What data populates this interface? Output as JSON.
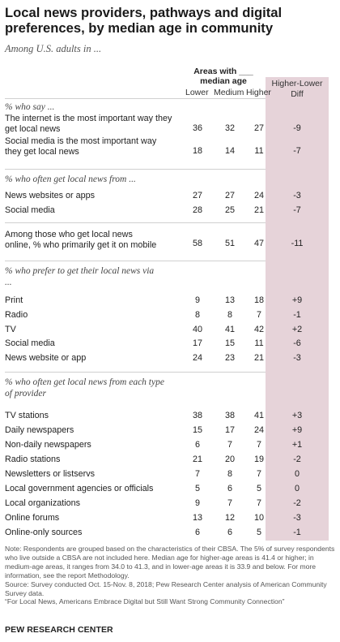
{
  "title": "Local news providers, pathways and digital preferences, by median age in community",
  "subtitle": "Among U.S. adults in ...",
  "header": {
    "group": "Areas with ___ median age",
    "lower": "Lower",
    "medium": "Medium",
    "higher": "Higher",
    "diff": "Higher-Lower Diff"
  },
  "colors": {
    "diff_column": "#e6d3d9",
    "rule": "#d0d0d0"
  },
  "sections": [
    {
      "heading": "% who say ...",
      "rows": [
        {
          "label": "The internet is the most important way they get local news",
          "lower": "36",
          "medium": "32",
          "higher": "27",
          "diff": "-9"
        },
        {
          "label": "Social media is the most important way they get local news",
          "lower": "18",
          "medium": "14",
          "higher": "11",
          "diff": "-7"
        }
      ]
    },
    {
      "heading": "% who often get local news from ...",
      "rows": [
        {
          "label": "News websites or apps",
          "lower": "27",
          "medium": "27",
          "higher": "24",
          "diff": "-3"
        },
        {
          "label": "Social media",
          "lower": "28",
          "medium": "25",
          "higher": "21",
          "diff": "-7"
        }
      ]
    },
    {
      "heading": "",
      "rows": [
        {
          "label": "Among those who get local news online, % who primarily get it on mobile",
          "lower": "58",
          "medium": "51",
          "higher": "47",
          "diff": "-11"
        }
      ]
    },
    {
      "heading": "% who prefer to get their local news via ...",
      "rows": [
        {
          "label": "Print",
          "lower": "9",
          "medium": "13",
          "higher": "18",
          "diff": "+9"
        },
        {
          "label": "Radio",
          "lower": "8",
          "medium": "8",
          "higher": "7",
          "diff": "-1"
        },
        {
          "label": "TV",
          "lower": "40",
          "medium": "41",
          "higher": "42",
          "diff": "+2"
        },
        {
          "label": "Social media",
          "lower": "17",
          "medium": "15",
          "higher": "11",
          "diff": "-6"
        },
        {
          "label": "News website or app",
          "lower": "24",
          "medium": "23",
          "higher": "21",
          "diff": "-3"
        }
      ]
    },
    {
      "heading": "% who often get local news from each type of provider",
      "rows": [
        {
          "label": "TV stations",
          "lower": "38",
          "medium": "38",
          "higher": "41",
          "diff": "+3"
        },
        {
          "label": "Daily newspapers",
          "lower": "15",
          "medium": "17",
          "higher": "24",
          "diff": "+9"
        },
        {
          "label": "Non-daily newspapers",
          "lower": "6",
          "medium": "7",
          "higher": "7",
          "diff": "+1"
        },
        {
          "label": "Radio stations",
          "lower": "21",
          "medium": "20",
          "higher": "19",
          "diff": "-2"
        },
        {
          "label": "Newsletters or listservs",
          "lower": "7",
          "medium": "8",
          "higher": "7",
          "diff": "0"
        },
        {
          "label": "Local government agencies or officials",
          "lower": "5",
          "medium": "6",
          "higher": "5",
          "diff": "0"
        },
        {
          "label": "Local organizations",
          "lower": "9",
          "medium": "7",
          "higher": "7",
          "diff": "-2"
        },
        {
          "label": "Online forums",
          "lower": "13",
          "medium": "12",
          "higher": "10",
          "diff": "-3"
        },
        {
          "label": "Online-only sources",
          "lower": "6",
          "medium": "6",
          "higher": "5",
          "diff": "-1"
        }
      ]
    }
  ],
  "note": "Note: Respondents are grouped based on the characteristics of their CBSA. The 5% of survey respondents who live outside a CBSA are not included here. Median age for higher-age areas is 41.4 or higher; in medium-age areas, it ranges from 34.0 to 41.3, and in lower-age areas it is 33.9 and below. For more information, see the report Methodology.",
  "source": "Source: Survey conducted Oct. 15-Nov. 8, 2018; Pew Research Center analysis of American Community Survey data.",
  "report": "“For Local News, Americans Embrace Digital but Still Want Strong Community Connection”",
  "brand": "PEW RESEARCH CENTER"
}
